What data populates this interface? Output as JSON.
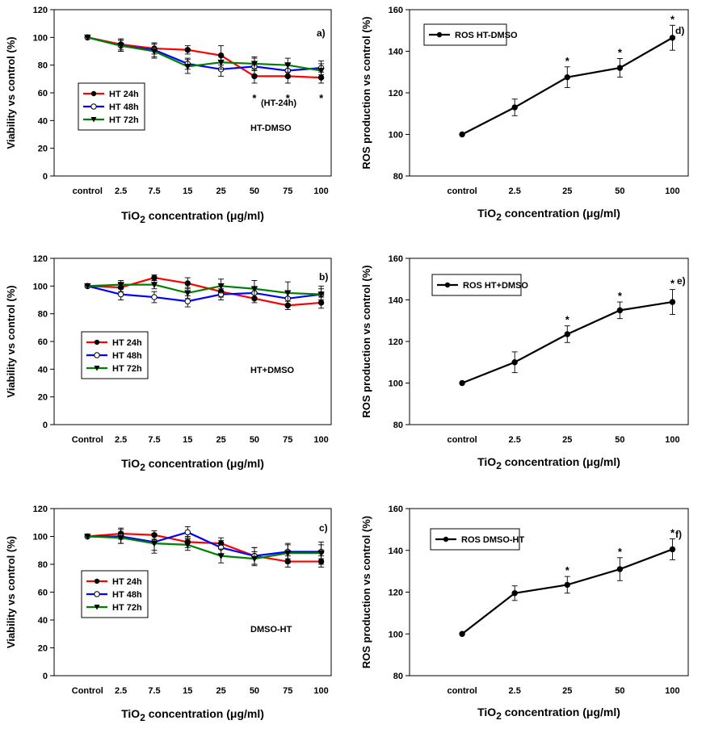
{
  "chart_data": [
    {
      "id": "a",
      "type": "line",
      "panel_label": "a)",
      "annotation": "HT-DMSO",
      "extra_note": "(HT-24h)",
      "xlabel_main": "TiO",
      "xlabel_sub": "2",
      "xlabel_rest": " concentration (μg/ml)",
      "ylabel": "Viability vs control (%)",
      "ylim": [
        0,
        120
      ],
      "yticks": [
        0,
        20,
        40,
        60,
        80,
        100,
        120
      ],
      "categories": [
        "control",
        "2.5",
        "7.5",
        "15",
        "25",
        "50",
        "75",
        "100"
      ],
      "legend_placement": "center-left",
      "series": [
        {
          "name": "HT 24h",
          "color": "#ff0000",
          "marker": "filled-circle",
          "values": [
            100,
            95,
            92,
            91,
            87,
            72,
            72,
            71
          ],
          "errors": [
            0,
            4,
            4,
            3,
            7,
            5,
            5,
            4
          ]
        },
        {
          "name": "HT 48h",
          "color": "#0000ff",
          "marker": "open-circle",
          "values": [
            100,
            94,
            91,
            81,
            77,
            79,
            76,
            78
          ],
          "errors": [
            0,
            4,
            5,
            4,
            5,
            6,
            5,
            5
          ]
        },
        {
          "name": "HT 72h",
          "color": "#008000",
          "marker": "filled-triangle",
          "values": [
            100,
            94,
            90,
            79,
            82,
            81,
            80,
            76
          ],
          "errors": [
            0,
            4,
            5,
            5,
            5,
            5,
            5,
            5
          ]
        }
      ],
      "stars": [
        "50",
        "75",
        "100"
      ]
    },
    {
      "id": "b",
      "type": "line",
      "panel_label": "b)",
      "annotation": "HT+DMSO",
      "xlabel_main": "TiO",
      "xlabel_sub": "2",
      "xlabel_rest": " concentration (μg/ml)",
      "ylabel": "Viability vs control (%)",
      "ylim": [
        0,
        120
      ],
      "yticks": [
        0,
        20,
        40,
        60,
        80,
        100,
        120
      ],
      "categories": [
        "Control",
        "2.5",
        "7.5",
        "15",
        "25",
        "50",
        "75",
        "100"
      ],
      "legend_placement": "center-left",
      "series": [
        {
          "name": "HT 24h",
          "color": "#ff0000",
          "marker": "filled-circle",
          "values": [
            100,
            99,
            106,
            102,
            96,
            91,
            86,
            88
          ],
          "errors": [
            0,
            3,
            2,
            4,
            4,
            3,
            3,
            4
          ]
        },
        {
          "name": "HT 48h",
          "color": "#0000ff",
          "marker": "open-circle",
          "values": [
            100,
            94,
            92,
            89,
            94,
            95,
            91,
            94
          ],
          "errors": [
            0,
            4,
            4,
            4,
            4,
            4,
            4,
            4
          ]
        },
        {
          "name": "HT 72h",
          "color": "#008000",
          "marker": "filled-triangle",
          "values": [
            100,
            101,
            101,
            95,
            100,
            98,
            95,
            94
          ],
          "errors": [
            0,
            3,
            3,
            4,
            5,
            6,
            8,
            6
          ]
        }
      ]
    },
    {
      "id": "c",
      "type": "line",
      "panel_label": "c)",
      "annotation": "DMSO-HT",
      "xlabel_main": "TiO",
      "xlabel_sub": "2",
      "xlabel_rest": " concentration (μg/ml)",
      "ylabel": "Viability vs control (%)",
      "ylim": [
        0,
        120
      ],
      "yticks": [
        0,
        20,
        40,
        60,
        80,
        100,
        120
      ],
      "categories": [
        "Control",
        "2.5",
        "7.5",
        "15",
        "25",
        "50",
        "75",
        "100"
      ],
      "legend_placement": "center-left",
      "series": [
        {
          "name": "HT 24h",
          "color": "#ff0000",
          "marker": "filled-circle",
          "values": [
            100,
            102,
            101,
            96,
            95,
            86,
            82,
            82
          ],
          "errors": [
            0,
            4,
            3,
            4,
            4,
            6,
            4,
            4
          ]
        },
        {
          "name": "HT 48h",
          "color": "#0000ff",
          "marker": "open-circle",
          "values": [
            100,
            100,
            96,
            103,
            92,
            86,
            89,
            89
          ],
          "errors": [
            0,
            5,
            6,
            4,
            5,
            6,
            5,
            5
          ]
        },
        {
          "name": "HT 72h",
          "color": "#008000",
          "marker": "filled-triangle",
          "values": [
            100,
            99,
            95,
            94,
            86,
            84,
            88,
            88
          ],
          "errors": [
            0,
            4,
            7,
            4,
            5,
            5,
            7,
            8
          ]
        }
      ]
    },
    {
      "id": "d",
      "type": "line",
      "panel_label": "d)",
      "xlabel_main": "TiO",
      "xlabel_sub": "2",
      "xlabel_rest": " concentration (μg/ml)",
      "ylabel": "ROS production vs control (%)",
      "ylim": [
        80,
        160
      ],
      "yticks": [
        80,
        100,
        120,
        140,
        160
      ],
      "categories": [
        "control",
        "2.5",
        "25",
        "50",
        "100"
      ],
      "legend_placement": "top-left",
      "series": [
        {
          "name": "ROS HT-DMSO",
          "color": "#000000",
          "marker": "filled-circle",
          "values": [
            100,
            113,
            127.5,
            132,
            146.5
          ],
          "errors": [
            0,
            4,
            5,
            4.5,
            6
          ]
        }
      ],
      "stars": [
        "25",
        "50",
        "100"
      ]
    },
    {
      "id": "e",
      "type": "line",
      "panel_label": "e)",
      "xlabel_main": "TiO",
      "xlabel_sub": "2",
      "xlabel_rest": " concentration (μg/ml)",
      "ylabel": "ROS production vs control (%)",
      "ylim": [
        80,
        160
      ],
      "yticks": [
        80,
        100,
        120,
        140,
        160
      ],
      "categories": [
        "control",
        "2.5",
        "25",
        "50",
        "100"
      ],
      "legend_placement": "top-left",
      "series": [
        {
          "name": "ROS HT+DMSO",
          "color": "#000000",
          "marker": "filled-circle",
          "values": [
            100,
            110,
            123.5,
            135,
            139
          ],
          "errors": [
            0,
            5,
            4,
            4,
            6
          ]
        }
      ],
      "stars": [
        "25",
        "50",
        "100"
      ]
    },
    {
      "id": "f",
      "type": "line",
      "panel_label": "f)",
      "xlabel_main": "TiO",
      "xlabel_sub": "2",
      "xlabel_rest": " concentration (μg/ml)",
      "ylabel": "ROS production vs control (%)",
      "ylim": [
        80,
        160
      ],
      "yticks": [
        80,
        100,
        120,
        140,
        160
      ],
      "categories": [
        "control",
        "2.5",
        "25",
        "50",
        "100"
      ],
      "legend_placement": "top-left",
      "series": [
        {
          "name": "ROS DMSO-HT",
          "color": "#000000",
          "marker": "filled-circle",
          "values": [
            100,
            119.5,
            123.5,
            131,
            140.5
          ],
          "errors": [
            0,
            3.5,
            4,
            5.5,
            5
          ]
        }
      ],
      "stars": [
        "25",
        "50",
        "100"
      ]
    }
  ]
}
